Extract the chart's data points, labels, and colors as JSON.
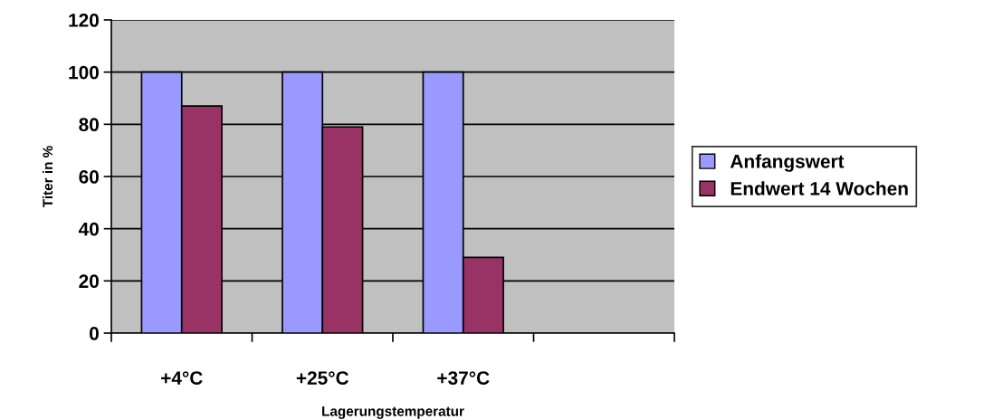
{
  "chart_data": {
    "type": "bar",
    "xlabel": "Lagerungstemperatur",
    "ylabel": "Titer in %",
    "categories": [
      "+4°C",
      "+25°C",
      "+37°C",
      null
    ],
    "series": [
      {
        "name": "Anfangswert",
        "color": "#9999ff",
        "values": [
          100,
          100,
          100,
          null
        ]
      },
      {
        "name": "Endwert 14 Wochen",
        "color": "#993366",
        "values": [
          87,
          79,
          29,
          null
        ]
      }
    ],
    "ylim": [
      0,
      120
    ],
    "yticks": [
      0,
      20,
      40,
      60,
      80,
      100,
      120
    ],
    "grid": "y",
    "legend": "right"
  }
}
